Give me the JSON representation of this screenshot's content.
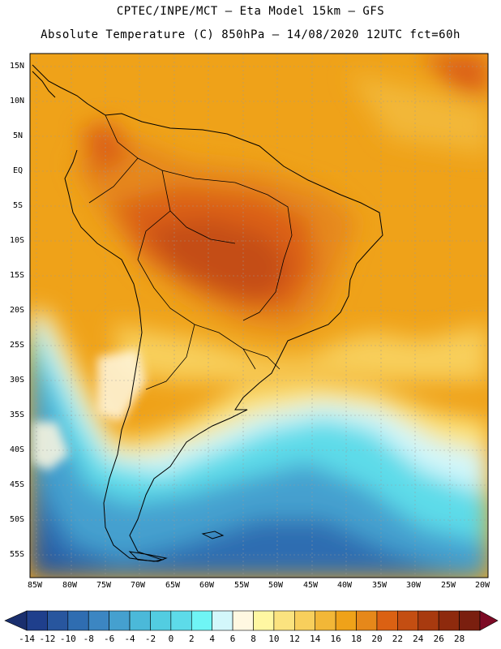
{
  "header": {
    "line1": "CPTEC/INPE/MCT –  Eta Model 15km – GFS",
    "line2": "Absolute Temperature (C) 850hPa – 14/08/2020 12UTC fct=60h"
  },
  "map": {
    "lat_labels": [
      "15N",
      "10N",
      "5N",
      "EQ",
      "5S",
      "10S",
      "15S",
      "20S",
      "25S",
      "30S",
      "35S",
      "40S",
      "45S",
      "50S",
      "55S"
    ],
    "lon_labels": [
      "85W",
      "80W",
      "75W",
      "70W",
      "65W",
      "60W",
      "55W",
      "50W",
      "45W",
      "40W",
      "35W",
      "30W",
      "25W",
      "20W"
    ],
    "lat_range": [
      17,
      -58
    ],
    "lon_range": [
      -86,
      -20
    ],
    "gridlines": true
  },
  "colorbar": {
    "labels": [
      "-14",
      "-12",
      "-10",
      "-8",
      "-6",
      "-4",
      "-2",
      "0",
      "2",
      "4",
      "6",
      "8",
      "10",
      "12",
      "14",
      "16",
      "18",
      "20",
      "22",
      "24",
      "26",
      "28"
    ],
    "colors": [
      "#1f3f8c",
      "#28569e",
      "#2f6db1",
      "#3c86c2",
      "#45a0cf",
      "#4bb9d9",
      "#52cde1",
      "#5ddbe9",
      "#6ff5f5",
      "#d3f7fb",
      "#fff8e1",
      "#fff7a2",
      "#fbe37f",
      "#f8cf5c",
      "#f2b737",
      "#efa219",
      "#e6881a",
      "#db6113",
      "#c44e12",
      "#a83a0f",
      "#8e2a0d",
      "#7a1f0f"
    ],
    "under_color": "#1a2f6e",
    "over_color": "#7d0a25"
  }
}
